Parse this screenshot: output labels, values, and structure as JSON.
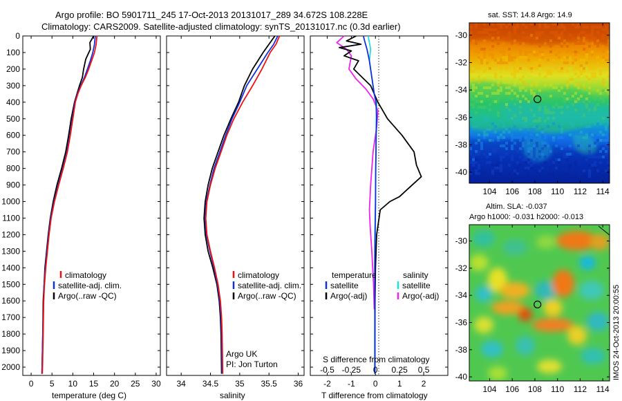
{
  "header": {
    "line1": "Argo profile: BO 5901711_245 17-Oct-2013 20131017_289 34.672S 108.228E",
    "line2": "Climatology: CARS2009. Satellite-adjusted climatology: synTS_20131017.nc (0.3d earlier)"
  },
  "colors": {
    "climatology": "#ee1111",
    "satellite": "#1030e0",
    "argo": "#000000",
    "sal_satellite": "#22dddd",
    "sal_argo": "#ee22ee"
  },
  "chart_data": [
    {
      "id": "temperature",
      "type": "line",
      "xlabel": "temperature (deg C)",
      "ylabel": "",
      "xlim": [
        -2,
        31
      ],
      "ylim": [
        2050,
        0
      ],
      "xticks": [
        0,
        5,
        10,
        15,
        20,
        25,
        30
      ],
      "yticks": [
        0,
        100,
        200,
        300,
        400,
        500,
        600,
        700,
        800,
        900,
        1000,
        1100,
        1200,
        1300,
        1400,
        1500,
        1600,
        1700,
        1800,
        1900,
        2000
      ],
      "legend": [
        "climatology",
        "satellite-adj. clim.",
        "Argo(..raw -QC)"
      ],
      "series": [
        {
          "name": "climatology",
          "color_key": "climatology",
          "x": [
            15.8,
            15.6,
            15.2,
            14.5,
            13.8,
            13.0,
            12.0,
            11.2,
            10.6,
            10.0,
            9.4,
            8.7,
            7.7,
            6.6,
            5.6,
            4.8,
            4.3,
            3.9,
            3.5,
            3.2,
            3.0,
            2.9,
            2.7
          ],
          "y": [
            0,
            50,
            100,
            150,
            200,
            250,
            300,
            350,
            400,
            500,
            600,
            700,
            800,
            900,
            1000,
            1100,
            1200,
            1300,
            1400,
            1500,
            1600,
            1800,
            2040
          ]
        },
        {
          "name": "satellite-adj. clim.",
          "color_key": "satellite",
          "x": [
            15.4,
            15.2,
            14.8,
            14.2,
            13.5,
            12.8,
            11.9,
            11.1,
            10.5,
            9.9,
            9.3,
            8.6,
            7.6,
            6.5,
            5.5,
            4.7,
            4.2,
            3.8,
            3.4,
            3.1,
            3.0,
            2.8,
            2.6
          ],
          "y": [
            0,
            50,
            100,
            150,
            200,
            250,
            300,
            350,
            400,
            500,
            600,
            700,
            800,
            900,
            1000,
            1100,
            1200,
            1300,
            1400,
            1500,
            1600,
            1800,
            2040
          ]
        },
        {
          "name": "Argo(..raw -QC)",
          "color_key": "argo",
          "x": [
            15.0,
            14.1,
            14.2,
            13.1,
            12.6,
            12.3,
            11.6,
            11.0,
            10.4,
            9.6,
            9.0,
            8.3,
            7.3,
            6.2,
            5.3,
            4.6,
            4.1,
            3.7,
            3.3,
            3.1,
            2.9,
            2.8,
            2.6
          ],
          "y": [
            0,
            40,
            80,
            140,
            200,
            250,
            300,
            350,
            400,
            500,
            600,
            700,
            800,
            900,
            1000,
            1100,
            1200,
            1300,
            1400,
            1500,
            1600,
            1800,
            2040
          ]
        }
      ]
    },
    {
      "id": "salinity",
      "type": "line",
      "xlabel": "salinity",
      "ylabel": "",
      "xlim": [
        33.75,
        36.1
      ],
      "ylim": [
        2050,
        0
      ],
      "xticks": [
        34,
        34.5,
        35,
        35.5,
        36
      ],
      "legend": [
        "climatology",
        "satellite-adj. clim.",
        "Argo(..raw -QC)"
      ],
      "annotations": [
        "Argo UK",
        "PI: Jon Turton"
      ],
      "series": [
        {
          "name": "climatology",
          "color_key": "climatology",
          "x": [
            35.68,
            35.62,
            35.52,
            35.38,
            35.22,
            35.05,
            34.9,
            34.78,
            34.68,
            34.58,
            34.5,
            34.44,
            34.42,
            34.44,
            34.5,
            34.57,
            34.63,
            34.67,
            34.69,
            34.7,
            34.71
          ],
          "y": [
            0,
            50,
            100,
            200,
            300,
            400,
            500,
            600,
            700,
            800,
            900,
            1000,
            1100,
            1200,
            1300,
            1400,
            1500,
            1600,
            1700,
            1800,
            2040
          ]
        },
        {
          "name": "satellite-adj. clim.",
          "color_key": "satellite",
          "x": [
            35.65,
            35.58,
            35.48,
            35.3,
            35.12,
            35.0,
            34.87,
            34.76,
            34.66,
            34.56,
            34.49,
            34.43,
            34.41,
            34.43,
            34.49,
            34.56,
            34.62,
            34.66,
            34.68,
            34.69,
            34.7
          ],
          "y": [
            0,
            50,
            100,
            200,
            300,
            400,
            500,
            600,
            700,
            800,
            900,
            1000,
            1100,
            1200,
            1300,
            1400,
            1500,
            1600,
            1700,
            1800,
            2040
          ]
        },
        {
          "name": "Argo(..raw -QC)",
          "color_key": "argo",
          "x": [
            35.6,
            35.5,
            35.4,
            35.22,
            35.08,
            34.98,
            34.85,
            34.73,
            34.63,
            34.53,
            34.46,
            34.41,
            34.39,
            34.41,
            34.46,
            34.54,
            34.61,
            34.65,
            34.67,
            34.68,
            34.69
          ],
          "y": [
            0,
            50,
            100,
            200,
            300,
            400,
            500,
            600,
            700,
            800,
            900,
            1000,
            1100,
            1200,
            1300,
            1400,
            1500,
            1600,
            1700,
            1800,
            2040
          ]
        }
      ]
    },
    {
      "id": "difference",
      "type": "line",
      "xlabel": "T difference from climatology",
      "x2label": "S difference from climatology",
      "ylabel": "",
      "xlim": [
        -2.7,
        3.0
      ],
      "ylim": [
        2050,
        0
      ],
      "xticks": [
        -2,
        -1,
        0,
        1,
        2
      ],
      "x2ticks": [
        "-0.5",
        "-0.25",
        "0",
        "0.25",
        "0.5"
      ],
      "legend_titles": [
        "temperature",
        "salinity"
      ],
      "legend_temperature": [
        "satellite",
        "Argo(-adj)"
      ],
      "legend_salinity": [
        "satellite",
        "Argo(-adj)"
      ],
      "series": [
        {
          "name": "temperature satellite",
          "color_key": "satellite",
          "x": [
            -0.5,
            -0.45,
            -0.35,
            -0.25,
            -0.15,
            -0.05,
            0.02,
            0.05,
            0.03,
            0.02,
            0.01,
            0.0,
            -0.02,
            -0.03,
            -0.03,
            -0.02,
            -0.02
          ],
          "y": [
            0,
            30,
            80,
            150,
            250,
            350,
            400,
            500,
            600,
            700,
            800,
            1000,
            1200,
            1400,
            1600,
            1800,
            2040
          ]
        },
        {
          "name": "temperature Argo(-adj)",
          "color_key": "argo",
          "x": [
            -0.8,
            -1.2,
            -0.6,
            -1.5,
            -1.0,
            -1.3,
            -0.7,
            -0.9,
            -0.2,
            0.1,
            0.5,
            1.1,
            1.6,
            1.7,
            1.9,
            1.3,
            1.0,
            0.6,
            0.2,
            0.05,
            0.0,
            -0.02,
            -0.02,
            -0.02
          ],
          "y": [
            0,
            30,
            50,
            70,
            90,
            120,
            150,
            200,
            300,
            400,
            500,
            600,
            700,
            780,
            850,
            930,
            970,
            1000,
            1050,
            1200,
            1400,
            1600,
            1800,
            2040
          ]
        },
        {
          "name": "salinity satellite",
          "color_key": "sal_satellite",
          "x": [
            -0.3,
            -0.25,
            -0.2,
            -0.25,
            -0.15,
            -0.05,
            0.05,
            0.03,
            0.02,
            0.01,
            0.0,
            -0.02,
            -0.03,
            -0.03
          ],
          "y": [
            0,
            40,
            80,
            150,
            250,
            350,
            400,
            500,
            700,
            900,
            1100,
            1400,
            1800,
            2040
          ]
        },
        {
          "name": "salinity Argo(-adj)",
          "color_key": "sal_argo",
          "x": [
            -1.3,
            -1.6,
            -1.2,
            -1.0,
            -1.1,
            -0.8,
            -0.4,
            -0.1,
            0.1,
            0.05,
            -0.1,
            -0.2,
            -0.25,
            -0.22,
            -0.15,
            -0.08,
            -0.05
          ],
          "y": [
            0,
            40,
            80,
            120,
            200,
            260,
            320,
            380,
            450,
            550,
            700,
            900,
            1050,
            1150,
            1300,
            1500,
            1650
          ]
        }
      ]
    },
    {
      "id": "sst_map",
      "type": "heatmap",
      "title": "sat. SST: 14.8  Argo: 14.9",
      "xlim": [
        102.2,
        114.6
      ],
      "ylim": [
        -40.8,
        -29.1
      ],
      "xticks": [
        104,
        106,
        108,
        110,
        112,
        114
      ],
      "yticks": [
        -30,
        -32,
        -34,
        -36,
        -38,
        -40
      ],
      "marker": {
        "lon": 108.228,
        "lat": -34.672
      }
    },
    {
      "id": "sla_map",
      "type": "heatmap",
      "title": "Altim. SLA: -0.037",
      "subtitle": "Argo h1000: -0.031 h2000: -0.013",
      "xlim": [
        102.2,
        114.6
      ],
      "ylim": [
        -40.3,
        -28.8
      ],
      "xticks": [
        104,
        106,
        108,
        110,
        112,
        114
      ],
      "yticks": [
        -30,
        -32,
        -34,
        -36,
        -38,
        -40
      ],
      "marker": {
        "lon": 108.228,
        "lat": -34.672
      }
    }
  ],
  "footer": {
    "vertical_stamp": "IMOS 24-Oct-2013 20:00:55"
  }
}
